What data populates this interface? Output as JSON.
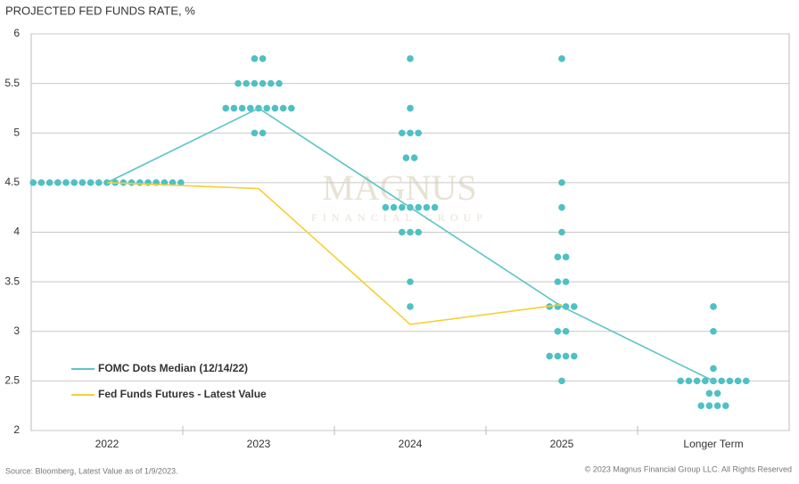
{
  "chart_data": {
    "type": "dot",
    "title": "PROJECTED FED FUNDS RATE, %",
    "source": "Source: Bloomberg, Latest Value as of 1/9/2023.",
    "copyright": "© 2023 Magnus Financial Group LLC. All Rights Reserved",
    "watermark": [
      "MAGNUS",
      "FINANCIAL GROUP"
    ],
    "categories": [
      "2022",
      "2023",
      "2024",
      "2025",
      "Longer Term"
    ],
    "ylim": [
      2,
      6
    ],
    "yticks": [
      2,
      2.5,
      3,
      3.5,
      4,
      4.5,
      5,
      5.5,
      6
    ],
    "grid": true,
    "dot_color": "#4fc0c4",
    "dots": [
      {
        "levels": [
          4.5
        ],
        "counts": [
          19
        ]
      },
      {
        "levels": [
          5.75,
          5.5,
          5.25,
          5.0
        ],
        "counts": [
          2,
          6,
          9,
          2
        ]
      },
      {
        "levels": [
          5.75,
          5.25,
          5.0,
          4.75,
          4.25,
          4.0,
          3.5,
          3.25
        ],
        "counts": [
          1,
          1,
          3,
          2,
          7,
          3,
          1,
          1
        ]
      },
      {
        "levels": [
          5.75,
          4.5,
          4.25,
          4.0,
          3.75,
          3.5,
          3.25,
          3.0,
          2.75,
          2.5
        ],
        "counts": [
          1,
          1,
          1,
          1,
          2,
          2,
          4,
          2,
          4,
          1
        ]
      },
      {
        "levels": [
          3.25,
          3.0,
          2.625,
          2.5,
          2.375,
          2.25
        ],
        "counts": [
          1,
          1,
          1,
          9,
          2,
          4
        ]
      }
    ],
    "series": [
      {
        "name": "FOMC Dots Median (12/14/22)",
        "color": "#5cc4c8",
        "values": [
          4.5,
          5.25,
          4.25,
          3.25,
          2.5
        ]
      },
      {
        "name": "Fed Funds Futures - Latest Value",
        "color": "#f4d035",
        "values": [
          4.5,
          4.44,
          3.07,
          3.27,
          null
        ]
      }
    ]
  }
}
